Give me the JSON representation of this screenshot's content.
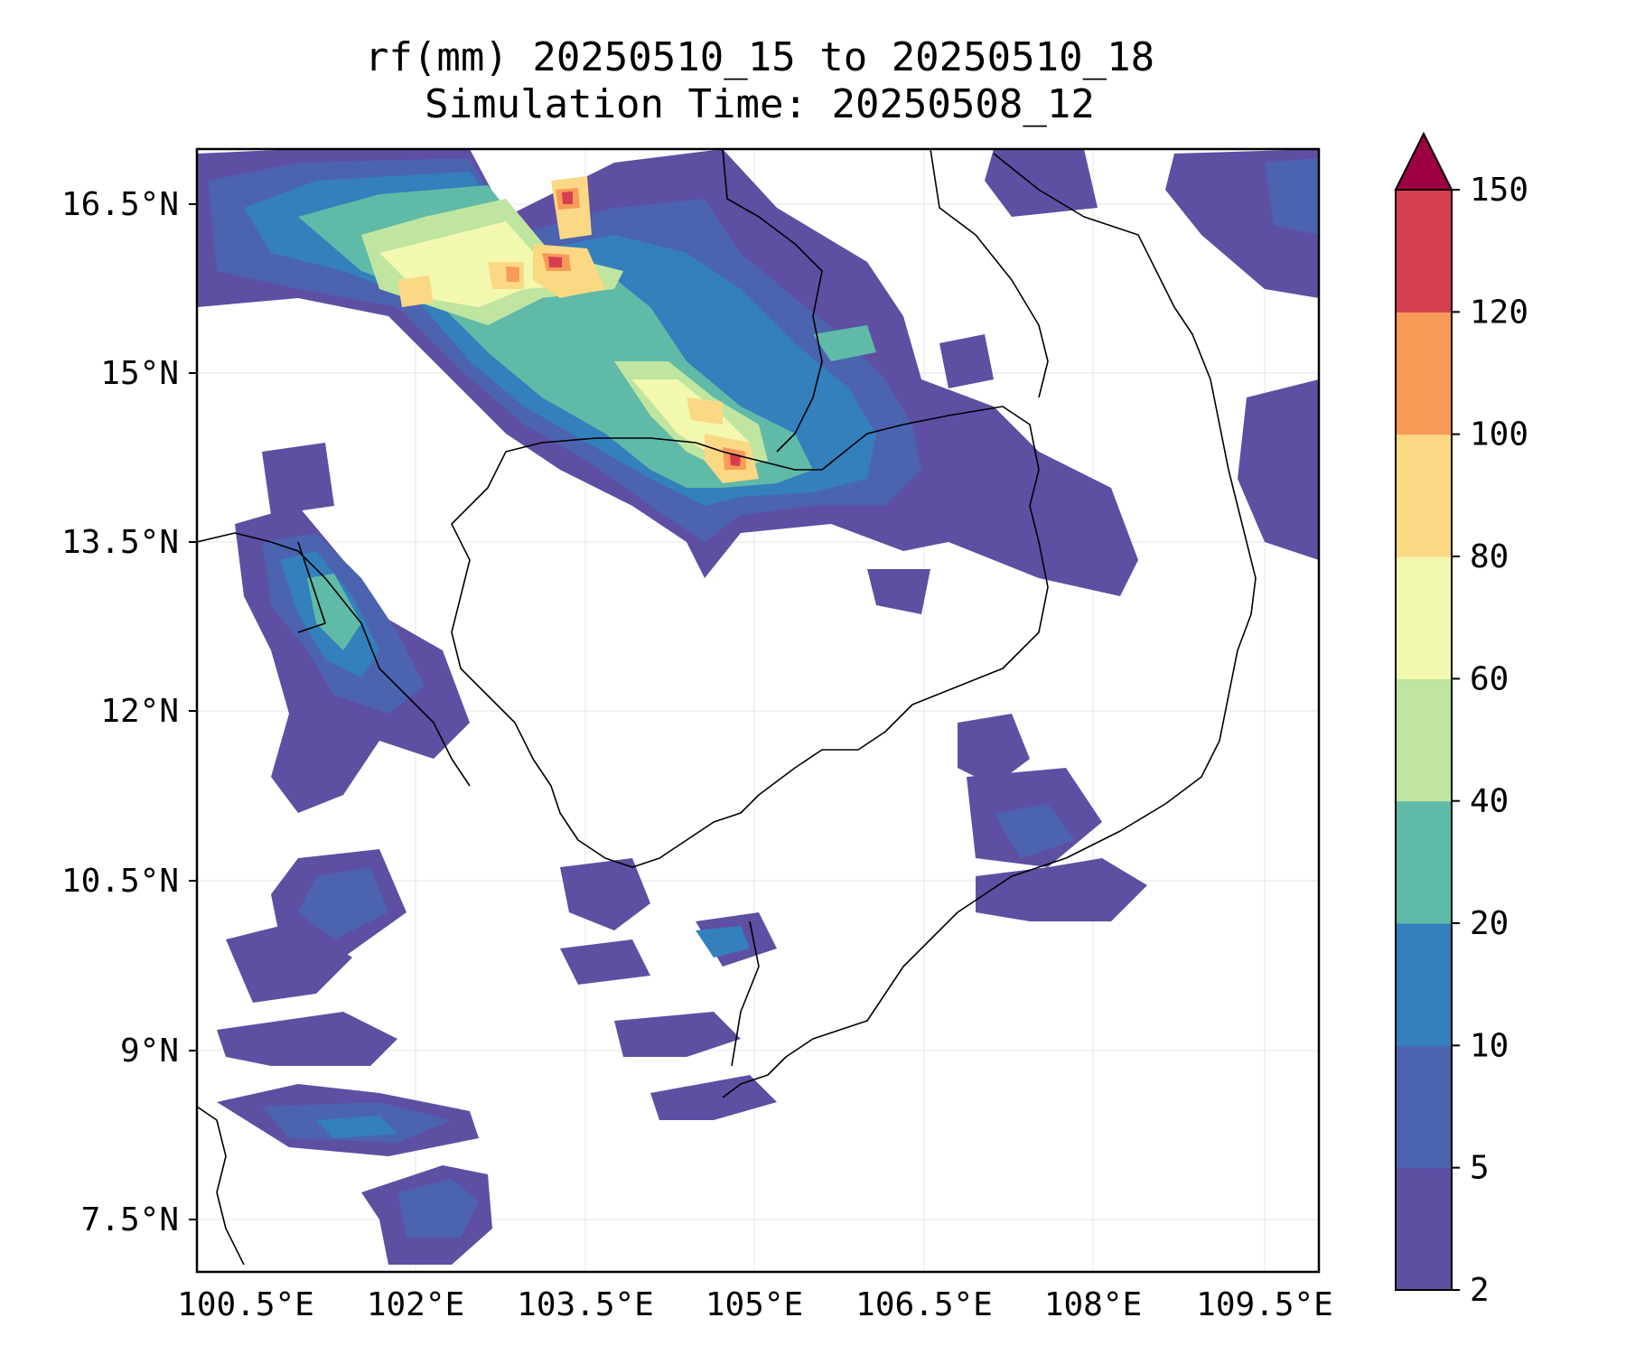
{
  "title": {
    "line1": "rf(mm) 20250510_15 to 20250510_18",
    "line2": "Simulation Time: 20250508_12"
  },
  "map": {
    "region": "Cambodia / southern Indochina",
    "lon_range": [
      100.2,
      110.1
    ],
    "lat_range": [
      7.0,
      17.0
    ],
    "gridlines": true,
    "borders": true,
    "coastlines": true
  },
  "axes": {
    "x_ticks": [
      "100.5°E",
      "102°E",
      "103.5°E",
      "105°E",
      "106.5°E",
      "108°E",
      "109.5°E"
    ],
    "y_ticks": [
      "16.5°N",
      "15°N",
      "13.5°N",
      "12°N",
      "10.5°N",
      "9°N",
      "7.5°N"
    ]
  },
  "colorbar": {
    "levels": [
      "2",
      "5",
      "10",
      "20",
      "40",
      "60",
      "80",
      "100",
      "120",
      "150"
    ],
    "colors": [
      "#5e4fa2",
      "#4c63b0",
      "#3380bd",
      "#5fbaa8",
      "#bfe5a0",
      "#f2f8ae",
      "#fbd884",
      "#f89a58",
      "#d53e4f",
      "#9e0142"
    ],
    "extend": "max"
  }
}
